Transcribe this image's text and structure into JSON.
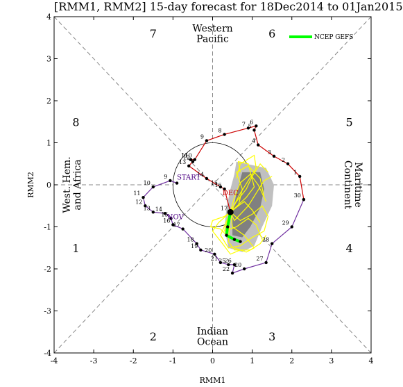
{
  "chart_data": {
    "type": "line",
    "title": "[RMM1, RMM2] 15-day forecast for 18Dec2014 to 01Jan2015",
    "xlabel": "RMM1",
    "ylabel": "RMM2",
    "xlim": [
      -4,
      4
    ],
    "ylim": [
      -4,
      4
    ],
    "xticks": [
      "-4",
      "-3",
      "-2",
      "-1",
      "0",
      "1",
      "2",
      "3",
      "4"
    ],
    "yticks": [
      "-4",
      "-3",
      "-2",
      "-1",
      "0",
      "1",
      "2",
      "3",
      "4"
    ],
    "phases": [
      {
        "label": "1",
        "x": -3.45,
        "y": -1.5
      },
      {
        "label": "2",
        "x": -1.5,
        "y": -3.6
      },
      {
        "label": "3",
        "x": 1.5,
        "y": -3.6
      },
      {
        "label": "4",
        "x": 3.45,
        "y": -1.5
      },
      {
        "label": "5",
        "x": 3.45,
        "y": 1.5
      },
      {
        "label": "6",
        "x": 1.5,
        "y": 3.6
      },
      {
        "label": "7",
        "x": -1.5,
        "y": 3.6
      },
      {
        "label": "8",
        "x": -3.45,
        "y": 1.5
      }
    ],
    "regions": [
      {
        "lines": [
          "Western",
          "Pacific"
        ],
        "x": 0,
        "y": 3.6,
        "rotate": 0
      },
      {
        "lines": [
          "Indian",
          "Ocean"
        ],
        "x": 0,
        "y": -3.6,
        "rotate": 0
      },
      {
        "lines": [
          "West. Hem.",
          "and Africa"
        ],
        "x": -3.55,
        "y": 0,
        "rotate": -90
      },
      {
        "lines": [
          "Maritime",
          "Continent"
        ],
        "x": 3.55,
        "y": 0,
        "rotate": 90
      }
    ],
    "legend": {
      "label": "NCEP GEFS",
      "color": "#00ff00",
      "position": "top-right"
    },
    "annotations": [
      {
        "text": "START",
        "x": -0.9,
        "y": 0.12,
        "color": "#4b0082"
      },
      {
        "text": "NOV",
        "x": -1.15,
        "y": -0.82,
        "color": "#4b0082"
      },
      {
        "text": "DEC",
        "x": 0.25,
        "y": -0.25,
        "color": "#cc0000"
      }
    ],
    "series": [
      {
        "color": "#7030a0",
        "points": [
          {
            "x": -0.9,
            "y": 0.04,
            "label": ""
          },
          {
            "x": -1.07,
            "y": 0.1,
            "label": "9"
          },
          {
            "x": -1.5,
            "y": -0.05,
            "label": "10"
          },
          {
            "x": -1.75,
            "y": -0.3,
            "label": "11"
          },
          {
            "x": -1.7,
            "y": -0.5,
            "label": "12"
          },
          {
            "x": -1.5,
            "y": -0.65,
            "label": "13"
          },
          {
            "x": -1.2,
            "y": -0.68,
            "label": "14"
          },
          {
            "x": -1.05,
            "y": -0.8,
            "label": "15"
          },
          {
            "x": -1.0,
            "y": -0.95,
            "label": "16"
          },
          {
            "x": -0.75,
            "y": -1.05,
            "label": "17"
          },
          {
            "x": -0.4,
            "y": -1.4,
            "label": "18"
          },
          {
            "x": -0.3,
            "y": -1.55,
            "label": "19"
          },
          {
            "x": 0.05,
            "y": -1.65,
            "label": "20"
          },
          {
            "x": 0.2,
            "y": -1.85,
            "label": "21"
          },
          {
            "x": 0.4,
            "y": -1.9,
            "label": "25"
          },
          {
            "x": 0.55,
            "y": -1.9,
            "label": "26"
          },
          {
            "x": 0.5,
            "y": -2.1,
            "label": "22"
          },
          {
            "x": 0.8,
            "y": -2.0,
            "label": "20"
          },
          {
            "x": 1.35,
            "y": -1.85,
            "label": "27"
          },
          {
            "x": 1.5,
            "y": -1.4,
            "label": "28"
          },
          {
            "x": 2.0,
            "y": -1.0,
            "label": "29"
          },
          {
            "x": 2.3,
            "y": -0.35,
            "label": "30"
          }
        ]
      },
      {
        "color": "#cc0000",
        "points": [
          {
            "x": 2.3,
            "y": -0.35,
            "label": ""
          },
          {
            "x": 2.2,
            "y": 0.2,
            "label": "1"
          },
          {
            "x": 1.9,
            "y": 0.5,
            "label": "2"
          },
          {
            "x": 1.55,
            "y": 0.68,
            "label": "3"
          },
          {
            "x": 1.15,
            "y": 0.95,
            "label": "4"
          },
          {
            "x": 1.05,
            "y": 1.3,
            "label": "5"
          },
          {
            "x": 1.1,
            "y": 1.4,
            "label": "6"
          },
          {
            "x": 0.9,
            "y": 1.35,
            "label": "7"
          },
          {
            "x": 0.3,
            "y": 1.2,
            "label": "8"
          },
          {
            "x": -0.15,
            "y": 1.05,
            "label": "9"
          },
          {
            "x": -0.45,
            "y": 0.6,
            "label": "10"
          },
          {
            "x": -0.55,
            "y": 0.6,
            "label": "11"
          },
          {
            "x": -0.5,
            "y": 0.55,
            "label": "12"
          },
          {
            "x": -0.6,
            "y": 0.45,
            "label": "13"
          },
          {
            "x": -0.15,
            "y": 0.15,
            "label": "14"
          },
          {
            "x": 0.2,
            "y": -0.05,
            "label": "15"
          },
          {
            "x": 0.3,
            "y": -0.1,
            "label": "16"
          },
          {
            "x": 0.45,
            "y": -0.65,
            "label": "17"
          }
        ]
      },
      {
        "color": "#00ff00",
        "name": "NCEP GEFS",
        "points": [
          {
            "x": 0.45,
            "y": -0.65
          },
          {
            "x": 0.38,
            "y": -1.0
          },
          {
            "x": 0.35,
            "y": -1.2
          },
          {
            "x": 0.55,
            "y": -1.3
          },
          {
            "x": 0.7,
            "y": -1.35
          }
        ]
      }
    ],
    "ensemble": {
      "color": "#ffff00",
      "members": [
        [
          [
            0.45,
            -0.65
          ],
          [
            0.7,
            -0.2
          ],
          [
            0.9,
            0.1
          ],
          [
            1.1,
            0.4
          ],
          [
            1.05,
            0.7
          ],
          [
            0.7,
            0.5
          ],
          [
            0.6,
            0.15
          ]
        ],
        [
          [
            0.45,
            -0.65
          ],
          [
            0.6,
            -0.4
          ],
          [
            0.85,
            -0.1
          ],
          [
            1.0,
            0.2
          ],
          [
            1.2,
            0.5
          ],
          [
            1.4,
            0.3
          ]
        ],
        [
          [
            0.45,
            -0.65
          ],
          [
            0.55,
            -0.85
          ],
          [
            0.7,
            -0.7
          ],
          [
            0.9,
            -0.5
          ],
          [
            1.1,
            -0.2
          ],
          [
            1.3,
            0.1
          ],
          [
            1.5,
            0.2
          ]
        ],
        [
          [
            0.45,
            -0.65
          ],
          [
            0.35,
            -0.9
          ],
          [
            0.5,
            -0.6
          ],
          [
            0.8,
            -0.4
          ],
          [
            1.0,
            -0.6
          ],
          [
            1.2,
            -0.9
          ]
        ],
        [
          [
            0.45,
            -0.65
          ],
          [
            0.3,
            -1.1
          ],
          [
            0.6,
            -1.0
          ],
          [
            0.9,
            -0.8
          ],
          [
            1.1,
            -0.95
          ],
          [
            1.25,
            -1.3
          ]
        ],
        [
          [
            0.45,
            -0.65
          ],
          [
            0.2,
            -1.2
          ],
          [
            0.4,
            -1.5
          ],
          [
            0.7,
            -1.45
          ],
          [
            1.0,
            -1.25
          ],
          [
            1.3,
            -1.1
          ]
        ],
        [
          [
            0.45,
            -0.65
          ],
          [
            0.5,
            -1.0
          ],
          [
            0.8,
            -1.2
          ],
          [
            1.05,
            -1.5
          ],
          [
            0.85,
            -1.6
          ],
          [
            0.55,
            -1.5
          ]
        ],
        [
          [
            0.45,
            -0.65
          ],
          [
            0.15,
            -0.9
          ],
          [
            0.0,
            -1.1
          ],
          [
            0.25,
            -1.4
          ],
          [
            0.45,
            -1.65
          ],
          [
            0.7,
            -1.55
          ]
        ],
        [
          [
            0.45,
            -0.65
          ],
          [
            0.65,
            -0.5
          ],
          [
            0.75,
            -0.1
          ],
          [
            0.6,
            0.3
          ],
          [
            0.9,
            0.45
          ],
          [
            1.2,
            0.15
          ],
          [
            1.3,
            -0.3
          ]
        ],
        [
          [
            0.45,
            -0.65
          ],
          [
            0.55,
            -0.3
          ],
          [
            0.7,
            0.05
          ],
          [
            0.95,
            0.25
          ],
          [
            1.15,
            0.0
          ],
          [
            1.35,
            -0.4
          ]
        ],
        [
          [
            0.45,
            -0.65
          ],
          [
            0.3,
            -0.75
          ],
          [
            0.0,
            -0.85
          ],
          [
            -0.05,
            -1.0
          ],
          [
            0.2,
            -1.05
          ],
          [
            0.4,
            -1.25
          ]
        ],
        [
          [
            0.45,
            -0.65
          ],
          [
            0.7,
            -0.85
          ],
          [
            1.0,
            -0.7
          ],
          [
            1.25,
            -0.5
          ],
          [
            1.4,
            -0.75
          ],
          [
            1.3,
            -1.1
          ]
        ],
        [
          [
            0.45,
            -0.65
          ],
          [
            0.85,
            -0.3
          ],
          [
            1.05,
            -0.05
          ],
          [
            0.9,
            0.5
          ],
          [
            0.65,
            0.55
          ],
          [
            0.7,
            0.3
          ]
        ],
        [
          [
            0.45,
            -0.65
          ],
          [
            0.4,
            -1.35
          ],
          [
            0.55,
            -1.55
          ],
          [
            0.95,
            -1.55
          ],
          [
            1.2,
            -1.4
          ],
          [
            1.35,
            -1.2
          ]
        ]
      ]
    },
    "shading": {
      "outer_color": "#c0c0c0",
      "inner_color": "#808080",
      "outer": [
        [
          0.6,
          0.55
        ],
        [
          1.35,
          0.4
        ],
        [
          1.55,
          0.0
        ],
        [
          1.5,
          -0.5
        ],
        [
          1.25,
          -1.0
        ],
        [
          1.05,
          -1.45
        ],
        [
          0.75,
          -1.6
        ],
        [
          0.4,
          -1.5
        ],
        [
          0.3,
          -1.05
        ],
        [
          0.35,
          -0.55
        ],
        [
          0.45,
          -0.1
        ],
        [
          0.55,
          0.25
        ]
      ],
      "inner": [
        [
          0.75,
          0.3
        ],
        [
          1.2,
          0.3
        ],
        [
          1.3,
          -0.1
        ],
        [
          1.2,
          -0.55
        ],
        [
          0.95,
          -1.0
        ],
        [
          0.75,
          -1.25
        ],
        [
          0.5,
          -1.2
        ],
        [
          0.5,
          -0.7
        ],
        [
          0.6,
          -0.2
        ]
      ]
    }
  }
}
